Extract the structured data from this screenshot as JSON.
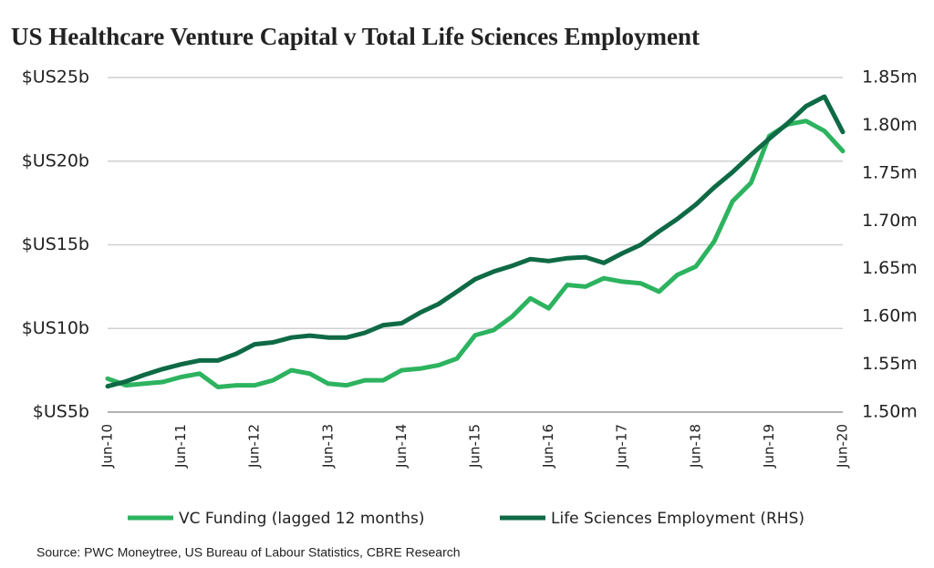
{
  "chart_data": {
    "type": "line",
    "title": "US Healthcare Venture Capital v Total Life Sciences Employment",
    "source": "Source: PWC Moneytree, US Bureau of Labour Statistics, CBRE Research",
    "categories": [
      "Jun-10",
      null,
      null,
      null,
      "Jun-11",
      null,
      null,
      null,
      "Jun-12",
      null,
      null,
      null,
      "Jun-13",
      null,
      null,
      null,
      "Jun-14",
      null,
      null,
      null,
      "Jun-15",
      null,
      null,
      null,
      "Jun-16",
      null,
      null,
      null,
      "Jun-17",
      null,
      null,
      null,
      "Jun-18",
      null,
      null,
      null,
      "Jun-19",
      null,
      null,
      null,
      "Jun-20"
    ],
    "series": [
      {
        "name": "VC Funding (lagged 12 months)",
        "color": "#2db35f",
        "values": [
          7.0,
          6.6,
          6.7,
          6.8,
          7.1,
          7.3,
          6.5,
          6.6,
          6.6,
          6.9,
          7.5,
          7.3,
          6.7,
          6.6,
          6.9,
          6.9,
          7.5,
          7.6,
          7.8,
          8.2,
          9.6,
          9.9,
          10.7,
          11.8,
          11.2,
          12.6,
          12.5,
          13.0,
          12.8,
          12.7,
          12.2,
          13.2,
          13.7,
          15.2,
          17.6,
          18.7,
          21.5,
          22.2,
          22.4,
          21.8,
          20.6
        ]
      },
      {
        "name": "Life Sciences Employment (RHS)",
        "color": "#0e6a45",
        "axis": "y2",
        "values": [
          1.527,
          1.532,
          1.539,
          1.545,
          1.55,
          1.554,
          1.554,
          1.561,
          1.571,
          1.573,
          1.578,
          1.58,
          1.578,
          1.578,
          1.583,
          1.591,
          1.593,
          1.604,
          1.613,
          1.626,
          1.639,
          1.647,
          1.653,
          1.66,
          1.658,
          1.661,
          1.662,
          1.656,
          1.666,
          1.675,
          1.689,
          1.702,
          1.717,
          1.735,
          1.751,
          1.769,
          1.786,
          1.802,
          1.82,
          1.83,
          1.793
        ]
      }
    ],
    "ylim": [
      5,
      25
    ],
    "yticks": [
      {
        "value": 5,
        "label": "$US5b"
      },
      {
        "value": 10,
        "label": "$US10b"
      },
      {
        "value": 15,
        "label": "$US15b"
      },
      {
        "value": 20,
        "label": "$US20b"
      },
      {
        "value": 25,
        "label": "$US25b"
      }
    ],
    "y2lim": [
      1.5,
      1.85
    ],
    "y2ticks": [
      {
        "value": 1.5,
        "label": "1.50m"
      },
      {
        "value": 1.55,
        "label": "1.55m"
      },
      {
        "value": 1.6,
        "label": "1.60m"
      },
      {
        "value": 1.65,
        "label": "1.65m"
      },
      {
        "value": 1.7,
        "label": "1.70m"
      },
      {
        "value": 1.75,
        "label": "1.75m"
      },
      {
        "value": 1.8,
        "label": "1.80m"
      },
      {
        "value": 1.85,
        "label": "1.85m"
      }
    ],
    "grid": true
  }
}
